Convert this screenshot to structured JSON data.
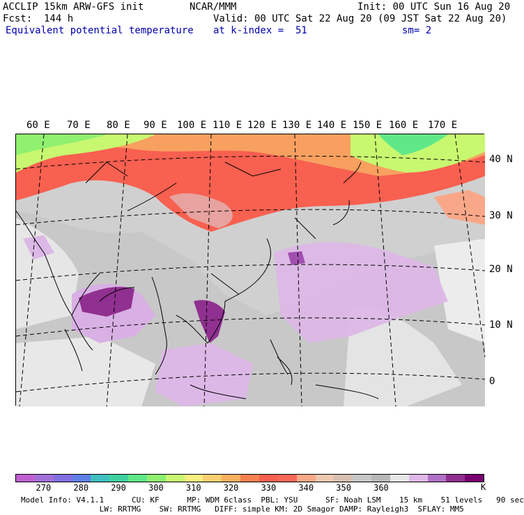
{
  "header": {
    "model": "ACCLIP 15km ARW-GFS init",
    "org": "NCAR/MMM",
    "init": "Init: 00 UTC Sun 16 Aug 20",
    "fcst": "Fcst:  144 h",
    "valid": "Valid: 00 UTC Sat 22 Aug 20 (09 JST Sat 22 Aug 20)",
    "field": "Equivalent potential temperature",
    "level": "at k-index =  51",
    "smooth": "sm= 2"
  },
  "lon_labels": [
    "60 E",
    "70 E",
    "80 E",
    "90 E",
    "100 E",
    "110 E",
    "120 E",
    "130 E",
    "140 E",
    "150 E",
    "160 E",
    "170 E"
  ],
  "lat_labels": [
    "40 N",
    "30 N",
    "20 N",
    "10 N",
    "0"
  ],
  "colorbar": {
    "colors": [
      "#c060d0",
      "#a070d8",
      "#8070e0",
      "#6080e8",
      "#40c0c0",
      "#40d0a0",
      "#60e888",
      "#90f070",
      "#c8f870",
      "#f8f080",
      "#f8d070",
      "#f8b060",
      "#f88050",
      "#f86050",
      "#f86858",
      "#f8a888",
      "#f0c8b0",
      "#d8c0b0",
      "#c8c8c8",
      "#b8b8b8",
      "#e8e8e8",
      "#e0b8e8",
      "#b070c8",
      "#903090",
      "#780070"
    ],
    "ticks": [
      "270",
      "280",
      "290",
      "300",
      "310",
      "320",
      "330",
      "340",
      "350",
      "360"
    ],
    "unit": "K"
  },
  "footer": {
    "line1": "Model Info: V4.1.1      CU: KF      MP: WDM 6class  PBL: YSU      SF: Noah LSM    15 km    51 levels   90 sec",
    "line2": "                 LW: RRTMG    SW: RRTMG   DIFF: simple KM: 2D Smagor DAMP: Rayleigh3  SFLAY: MM5"
  }
}
